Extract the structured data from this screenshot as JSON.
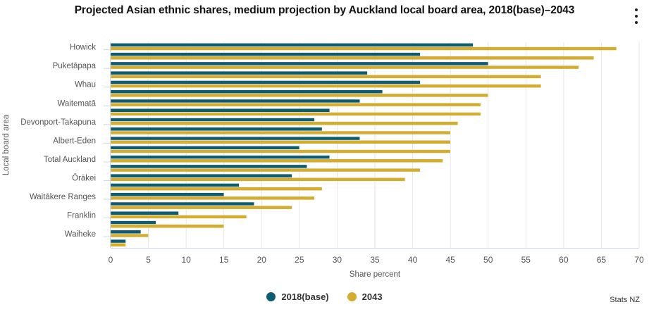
{
  "chart_data": {
    "type": "bar",
    "orientation": "horizontal",
    "title": "Projected Asian ethnic shares, medium projection by Auckland local board area, 2018(base)–2043",
    "xlabel": "Share percent",
    "ylabel": "Local board area",
    "xlim": [
      0,
      70
    ],
    "xticks": [
      "0",
      "5",
      "10",
      "15",
      "20",
      "25",
      "30",
      "35",
      "40",
      "45",
      "50",
      "55",
      "60",
      "65",
      "70"
    ],
    "grid": true,
    "legend_position": "bottom",
    "categories": [
      "Howick",
      "",
      "Puketāpapa",
      "",
      "Whau",
      "",
      "Waitematā",
      "",
      "Devonport-Takapuna",
      "",
      "Albert-Eden",
      "",
      "Total Auckland",
      "",
      "Ōrākei",
      "",
      "Waitākere Ranges",
      "",
      "Franklin",
      "",
      "Waiheke",
      ""
    ],
    "series": [
      {
        "name": "2018(base)",
        "color": "#0e5c72",
        "values": [
          48,
          41,
          50,
          34,
          41,
          36,
          33,
          29,
          27,
          28,
          33,
          25,
          29,
          26,
          24,
          17,
          15,
          19,
          9,
          6,
          4,
          2
        ]
      },
      {
        "name": "2043",
        "color": "#d4ac30",
        "values": [
          67,
          64,
          62,
          57,
          57,
          50,
          49,
          49,
          46,
          45,
          45,
          45,
          44,
          41,
          39,
          28,
          27,
          24,
          18,
          15,
          5,
          2
        ]
      }
    ]
  },
  "menu_icon": "more-vertical-icon",
  "credit": "Stats NZ"
}
